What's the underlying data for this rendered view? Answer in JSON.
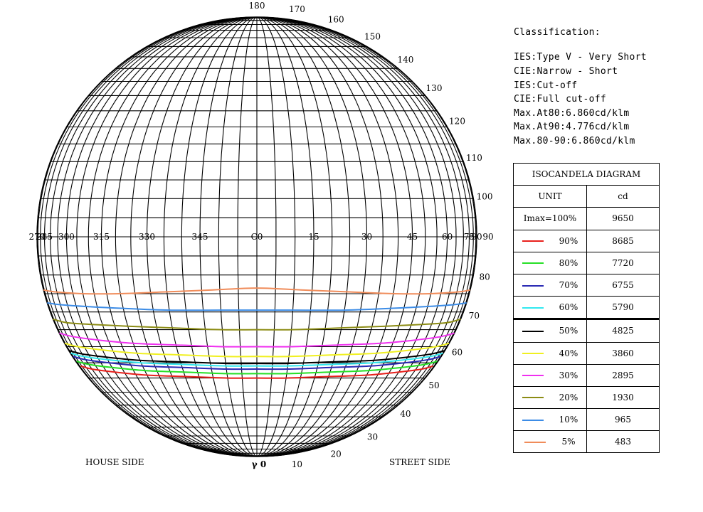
{
  "classification": {
    "title": "Classification:",
    "lines": [
      "IES:Type V - Very Short",
      "CIE:Narrow - Short",
      "IES:Cut-off",
      "CIE:Full cut-off",
      "Max.At80:6.860cd/klm",
      "Max.At90:4.776cd/klm",
      "Max.80-90:6.860cd/klm"
    ]
  },
  "legend": {
    "title": "ISOCANDELA DIAGRAM",
    "unit_label": "UNIT",
    "unit_value": "cd",
    "imax_label": "Imax=100%",
    "imax_value": "9650",
    "rows": [
      {
        "label": "90%",
        "value": "8685",
        "color": "#e8201c"
      },
      {
        "label": "80%",
        "value": "7720",
        "color": "#26e026"
      },
      {
        "label": "70%",
        "value": "6755",
        "color": "#2a2ab4"
      },
      {
        "label": "60%",
        "value": "5790",
        "color": "#30e8f0"
      },
      {
        "label": "50%",
        "value": "4825",
        "color": "#000000"
      },
      {
        "label": "40%",
        "value": "3860",
        "color": "#f0f020"
      },
      {
        "label": "30%",
        "value": "2895",
        "color": "#f030f0"
      },
      {
        "label": "20%",
        "value": "1930",
        "color": "#8c8c14"
      },
      {
        "label": "10%",
        "value": "965",
        "color": "#3c8ce6"
      },
      {
        "label": "5%",
        "value": "483",
        "color": "#f08c5a"
      }
    ]
  },
  "chart_data": {
    "type": "isocandela",
    "c_ticks": [
      "270",
      "285",
      "300",
      "315",
      "330",
      "345",
      "C0",
      "15",
      "30",
      "45",
      "60",
      "75",
      "90"
    ],
    "gamma_ticks": [
      "10",
      "20",
      "30",
      "40",
      "50",
      "60",
      "70",
      "80",
      "90",
      "100",
      "110",
      "120",
      "130",
      "140",
      "150",
      "160",
      "170",
      "180"
    ],
    "gamma_label": "γ 0",
    "house_side": "HOUSE SIDE",
    "street_side": "STREET SIDE",
    "isolines": [
      {
        "level": "90%",
        "color": "#e8201c",
        "c": [
          -82,
          -70,
          -55,
          -40,
          -25,
          -10,
          0,
          10,
          25,
          40,
          55,
          70,
          82
        ],
        "gamma": [
          54,
          53,
          52,
          51,
          50.5,
          50,
          50,
          50,
          50.5,
          51,
          52,
          53,
          54
        ]
      },
      {
        "level": "80%",
        "color": "#26e026",
        "c": [
          -84,
          -70,
          -55,
          -40,
          -25,
          -10,
          0,
          10,
          25,
          40,
          55,
          70,
          84
        ],
        "gamma": [
          55.5,
          54.5,
          53.5,
          52.5,
          52,
          51.5,
          51.5,
          51.5,
          52,
          52.5,
          53.5,
          54.5,
          55.5
        ]
      },
      {
        "level": "70%",
        "color": "#2a2ab4",
        "c": [
          -85,
          -70,
          -55,
          -40,
          -25,
          -10,
          0,
          10,
          25,
          40,
          55,
          70,
          85
        ],
        "gamma": [
          57,
          56,
          55,
          54,
          53.5,
          53,
          53,
          53,
          53.5,
          54,
          55,
          56,
          57
        ]
      },
      {
        "level": "60%",
        "color": "#30e8f0",
        "c": [
          -86,
          -70,
          -55,
          -40,
          -25,
          -10,
          0,
          10,
          25,
          40,
          55,
          70,
          86
        ],
        "gamma": [
          58,
          57,
          56,
          55,
          54.5,
          54,
          54,
          54,
          54.5,
          55,
          56,
          57,
          58
        ]
      },
      {
        "level": "50%",
        "color": "#000000",
        "c": [
          -86,
          -70,
          -55,
          -40,
          -25,
          -10,
          0,
          10,
          25,
          40,
          55,
          70,
          86
        ],
        "gamma": [
          58.8,
          57.8,
          56.8,
          55.8,
          55.3,
          54.8,
          54.8,
          54.8,
          55.3,
          55.8,
          56.8,
          57.8,
          58.8
        ]
      },
      {
        "level": "40%",
        "color": "#f0f020",
        "c": [
          -87,
          -70,
          -55,
          -40,
          -25,
          -10,
          0,
          10,
          25,
          40,
          55,
          70,
          87
        ],
        "gamma": [
          61,
          60,
          59,
          58,
          57.5,
          57,
          57,
          57,
          57.5,
          58,
          59,
          60,
          61
        ]
      },
      {
        "level": "30%",
        "color": "#f030f0",
        "c": [
          -88,
          -70,
          -55,
          -40,
          -25,
          -10,
          0,
          10,
          25,
          40,
          55,
          70,
          88
        ],
        "gamma": [
          64,
          63,
          62,
          61,
          60.5,
          60,
          60,
          60,
          60.5,
          61,
          62,
          63,
          64
        ]
      },
      {
        "level": "20%",
        "color": "#8c8c14",
        "c": [
          -89,
          -70,
          -55,
          -40,
          -25,
          -10,
          0,
          10,
          25,
          40,
          55,
          70,
          89
        ],
        "gamma": [
          68,
          67,
          66.5,
          66,
          65.5,
          65,
          65,
          65,
          65.5,
          66,
          66.5,
          67,
          68
        ]
      },
      {
        "level": "10%",
        "color": "#3c8ce6",
        "c": [
          -89,
          -70,
          -55,
          -40,
          -25,
          -10,
          0,
          10,
          25,
          40,
          55,
          70,
          89
        ],
        "gamma": [
          72.5,
          72,
          71.5,
          71,
          70.5,
          70.5,
          70.5,
          70.5,
          70.5,
          71,
          71.5,
          72,
          72.5
        ]
      },
      {
        "level": "5%",
        "color": "#f08c5a",
        "c": [
          -89,
          -72,
          -55,
          -40,
          -25,
          -12,
          0,
          12,
          25,
          40,
          55,
          72,
          89
        ],
        "gamma": [
          76,
          75.5,
          75,
          75,
          75.5,
          76,
          76.5,
          76,
          75.5,
          75,
          75,
          75.5,
          76
        ]
      }
    ]
  }
}
